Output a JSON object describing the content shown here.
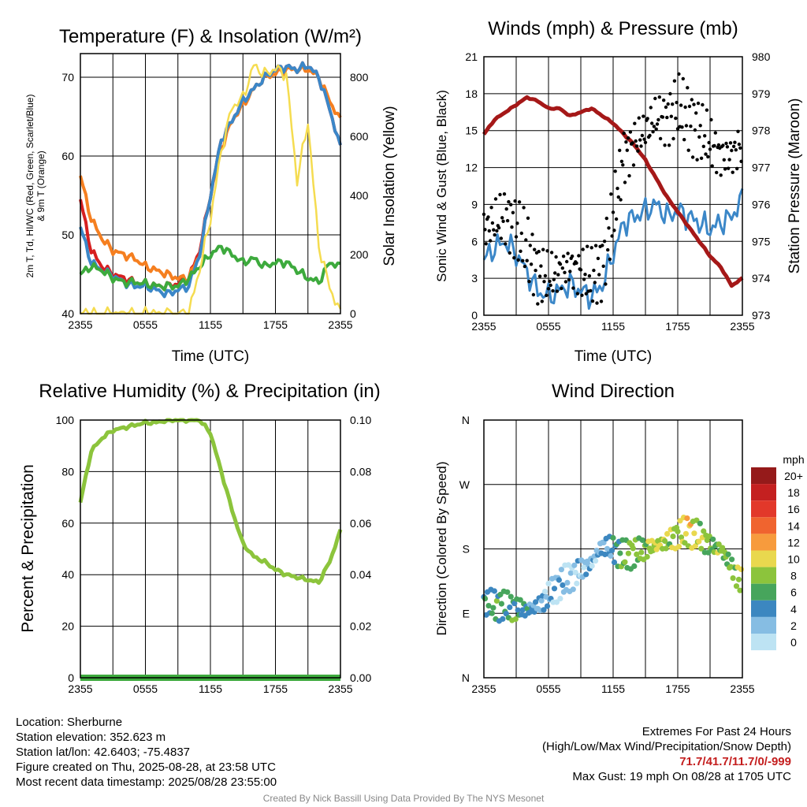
{
  "colors": {
    "red": "#d62020",
    "green": "#3daa3d",
    "orange": "#f57f20",
    "blue": "#3b87c8",
    "yellow": "#f5dc50",
    "black": "#000000",
    "maroon": "#a51818",
    "rh": "#8cc43c",
    "precip": "#3daa3d"
  },
  "chart_data": [
    {
      "id": "temperature",
      "type": "line",
      "title": "Temperature (F) & Insolation (W/m²)",
      "xlabel": "Time (UTC)",
      "ylabel": "2m T, Td, HI/WC (Red, Green, Scarlet/Blue) & 9m T (Orange)",
      "ylabel_lines": [
        "2m T, Td, HI/WC (Red, Green, Scarlet/Blue)",
        "& 9m T (Orange)"
      ],
      "y2label": "Solar Insolation (Yellow)",
      "xticks": [
        "2355",
        "0555",
        "1155",
        "1755",
        "2355"
      ],
      "ylim": [
        40,
        73
      ],
      "yticks": [
        40,
        50,
        60,
        70
      ],
      "y2lim": [
        0,
        880
      ],
      "y2ticks": [
        0,
        200,
        400,
        600,
        800
      ],
      "x": [
        0,
        1,
        2,
        3,
        4,
        5,
        6,
        7,
        8,
        9,
        10,
        11,
        12,
        13,
        14,
        15,
        16,
        17,
        18,
        19,
        20,
        21,
        22,
        23,
        24
      ],
      "series": [
        {
          "key": "temp_2m",
          "color": "red",
          "values": [
            54.5,
            48.0,
            46.0,
            45.0,
            44.5,
            44.0,
            43.8,
            43.5,
            43.5,
            43.8,
            44.5,
            48.0,
            55.0,
            62.0,
            64.5,
            67.0,
            68.5,
            70.0,
            71.0,
            71.3,
            71.0,
            71.5,
            70.0,
            66.0,
            61.0
          ]
        },
        {
          "key": "temp_9m",
          "color": "orange",
          "values": [
            57.5,
            52.0,
            49.5,
            48.0,
            47.5,
            47.0,
            46.0,
            45.5,
            45.0,
            44.5,
            44.5,
            47.5,
            55.0,
            61.0,
            64.5,
            66.5,
            68.5,
            70.0,
            70.5,
            71.0,
            71.0,
            71.0,
            70.0,
            67.0,
            64.5
          ]
        },
        {
          "key": "heat_index_wind_chill",
          "color": "blue",
          "values": [
            51.0,
            46.5,
            45.5,
            44.8,
            44.0,
            43.5,
            43.5,
            43.0,
            42.5,
            43.0,
            43.5,
            47.5,
            55.0,
            62.0,
            64.5,
            67.0,
            68.5,
            70.0,
            71.0,
            71.3,
            71.0,
            71.5,
            70.0,
            66.0,
            61.0
          ]
        },
        {
          "key": "dewpoint",
          "color": "green",
          "values": [
            45.0,
            46.0,
            45.5,
            44.5,
            44.0,
            44.0,
            43.8,
            43.5,
            43.5,
            43.5,
            44.5,
            46.0,
            47.5,
            48.5,
            47.5,
            46.5,
            47.0,
            46.0,
            46.5,
            46.5,
            45.5,
            44.5,
            44.0,
            46.5,
            46.0
          ]
        },
        {
          "key": "solar",
          "color": "yellow",
          "axis": "right",
          "values": [
            0,
            0,
            0,
            0,
            0,
            0,
            0,
            0,
            0,
            0,
            0,
            150,
            320,
            550,
            700,
            730,
            840,
            810,
            830,
            810,
            450,
            650,
            230,
            90,
            0
          ]
        }
      ]
    },
    {
      "id": "winds",
      "type": "line",
      "title": "Winds (mph) & Pressure (mb)",
      "xlabel": "Time (UTC)",
      "ylabel": "Sonic Wind & Gust (Blue, Black)",
      "y2label": "Station Pressure (Maroon)",
      "xticks": [
        "2355",
        "0555",
        "1155",
        "1755",
        "2355"
      ],
      "ylim": [
        0,
        21
      ],
      "yticks": [
        0,
        3,
        6,
        9,
        12,
        15,
        18,
        21
      ],
      "y2lim": [
        973,
        980
      ],
      "y2ticks": [
        973,
        974,
        975,
        976,
        977,
        978,
        979,
        980
      ],
      "x": [
        0,
        1,
        2,
        3,
        4,
        5,
        6,
        7,
        8,
        9,
        10,
        11,
        12,
        13,
        14,
        15,
        16,
        17,
        18,
        19,
        20,
        21,
        22,
        23,
        24
      ],
      "series": [
        {
          "key": "wind",
          "color": "blue",
          "values": [
            4.5,
            5.5,
            6.0,
            5.0,
            3.5,
            2.0,
            1.5,
            2.0,
            2.5,
            2.0,
            1.5,
            2.5,
            5.0,
            7.5,
            8.0,
            8.5,
            9.0,
            8.0,
            8.5,
            8.0,
            7.5,
            7.0,
            7.5,
            8.0,
            9.5
          ]
        },
        {
          "key": "pressure",
          "color": "maroon",
          "axis": "right",
          "values": [
            977.9,
            978.3,
            978.5,
            978.7,
            978.9,
            978.8,
            978.6,
            978.6,
            978.4,
            978.5,
            978.6,
            978.4,
            978.2,
            977.9,
            977.6,
            977.2,
            976.7,
            976.2,
            975.8,
            975.4,
            975.0,
            974.6,
            974.3,
            973.8,
            974.0
          ]
        },
        {
          "key": "gust",
          "color": "black",
          "style": "dots",
          "values": [
            7,
            7.5,
            8,
            7,
            5.5,
            3.5,
            3,
            3.5,
            4,
            3.5,
            3,
            4,
            8,
            13,
            14,
            15,
            16,
            16,
            17,
            16,
            15,
            14,
            13,
            13,
            14
          ]
        }
      ]
    },
    {
      "id": "humidity",
      "type": "line",
      "title": "Relative Humidity (%) & Precipitation (in)",
      "ylabel": "Percent & Precipitation",
      "xticks": [
        "2355",
        "0555",
        "1155",
        "1755",
        "2355"
      ],
      "ylim": [
        0,
        100
      ],
      "yticks": [
        0,
        20,
        40,
        60,
        80,
        100
      ],
      "y2lim": [
        0,
        0.1
      ],
      "y2ticks": [
        "0.00",
        "0.02",
        "0.04",
        "0.06",
        "0.08",
        "0.10"
      ],
      "x": [
        0,
        1,
        2,
        3,
        4,
        5,
        6,
        7,
        8,
        9,
        10,
        11,
        12,
        13,
        14,
        15,
        16,
        17,
        18,
        19,
        20,
        21,
        22,
        23,
        24
      ],
      "series": [
        {
          "key": "rh",
          "color": "rh",
          "values": [
            68,
            88,
            93,
            96,
            97,
            98,
            99,
            99,
            100,
            100,
            100,
            100,
            95,
            80,
            65,
            52,
            47,
            45,
            42,
            40,
            39,
            38,
            37,
            45,
            57
          ]
        },
        {
          "key": "precip",
          "color": "precip",
          "axis": "right",
          "values": [
            0,
            0,
            0,
            0,
            0,
            0,
            0,
            0,
            0,
            0,
            0,
            0,
            0,
            0,
            0,
            0,
            0,
            0,
            0,
            0,
            0,
            0,
            0,
            0,
            0
          ]
        }
      ]
    },
    {
      "id": "direction",
      "type": "scatter",
      "title": "Wind Direction",
      "ylabel": "Direction (Colored By Speed)",
      "xticks": [
        "2355",
        "0555",
        "1155",
        "1755",
        "2355"
      ],
      "yticks": [
        "N",
        "E",
        "S",
        "W",
        "N"
      ],
      "ylim": [
        0,
        360
      ],
      "legend_title": "mph",
      "legend_labels": [
        "20+",
        "18",
        "16",
        "14",
        "12",
        "10",
        "8",
        "6",
        "4",
        "2",
        "0"
      ],
      "legend_colors": [
        "#951a1a",
        "#c42020",
        "#e2382a",
        "#f0642f",
        "#f79b3d",
        "#e9d84e",
        "#8cc43c",
        "#47a55c",
        "#3c87c0",
        "#86bde3",
        "#bde3f3"
      ],
      "x": [
        0,
        1,
        2,
        3,
        4,
        5,
        6,
        7,
        8,
        9,
        10,
        11,
        12,
        13,
        14,
        15,
        16,
        17,
        18,
        19,
        20,
        21,
        22,
        23,
        24
      ],
      "direction": [
        105,
        102,
        100,
        97,
        95,
        100,
        115,
        130,
        140,
        150,
        160,
        185,
        180,
        170,
        175,
        180,
        185,
        190,
        200,
        205,
        198,
        185,
        180,
        155,
        130
      ],
      "speed": [
        4,
        6,
        5,
        6,
        4,
        3,
        2,
        2,
        1,
        2,
        2,
        3,
        4,
        7,
        7,
        8,
        9,
        8,
        9,
        10,
        8,
        7,
        8,
        7,
        9
      ]
    }
  ],
  "footer": {
    "location": "Location: Sherburne",
    "elevation": "Station elevation: 352.623 m",
    "latlon": "Station lat/lon: 42.6403; -75.4837",
    "created": "Figure created on Thu, 2025-08-28, at 23:58 UTC",
    "recent": "Most recent data timestamp: 2025/08/28 23:55:00",
    "extremes_title": "Extremes For Past 24 Hours",
    "extremes_legend": "(High/Low/Max Wind/Precipitation/Snow Depth)",
    "extremes_values": "71.7/41.7/11.7/0/-999",
    "max_gust": "Max Gust: 19 mph On 08/28 at 1705 UTC",
    "credit": "Created By Nick Bassill Using Data Provided By The NYS Mesonet"
  }
}
